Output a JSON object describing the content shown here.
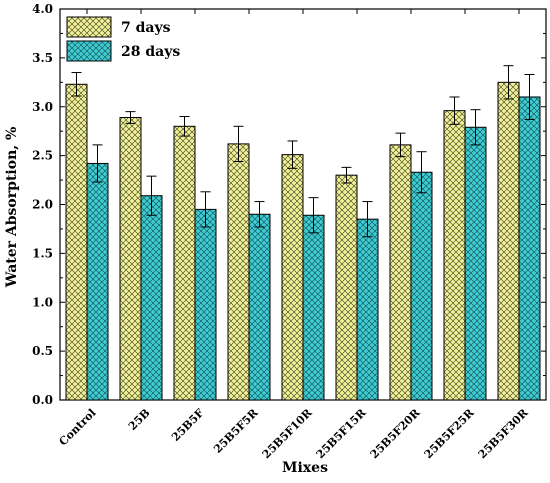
{
  "chart_data": {
    "type": "bar",
    "title": "",
    "xlabel": "Mixes",
    "ylabel": "Water Absorption, %",
    "ylim": [
      0.0,
      4.0
    ],
    "yticks": [
      "0.0",
      "0.5",
      "1.0",
      "1.5",
      "2.0",
      "2.5",
      "3.0",
      "3.5",
      "4.0"
    ],
    "categories": [
      "Control",
      "25B",
      "25B5F",
      "25B5F5R",
      "25B5F10R",
      "25B5F15R",
      "25B5F20R",
      "25B5F25R",
      "25B5F30R"
    ],
    "series": [
      {
        "name": "7 days",
        "color": "#f0f096",
        "pattern": "crosshatch",
        "values": [
          3.23,
          2.89,
          2.8,
          2.62,
          2.51,
          2.3,
          2.61,
          2.96,
          3.25
        ],
        "errors": [
          0.12,
          0.06,
          0.1,
          0.18,
          0.14,
          0.08,
          0.12,
          0.14,
          0.17
        ]
      },
      {
        "name": "28 days",
        "color": "#3ecbd2",
        "pattern": "crosshatch",
        "values": [
          2.42,
          2.09,
          1.95,
          1.9,
          1.89,
          1.85,
          2.33,
          2.79,
          3.1
        ],
        "errors": [
          0.19,
          0.2,
          0.18,
          0.13,
          0.18,
          0.18,
          0.21,
          0.18,
          0.23
        ]
      }
    ],
    "grid": false,
    "legend_position": "top-left"
  }
}
